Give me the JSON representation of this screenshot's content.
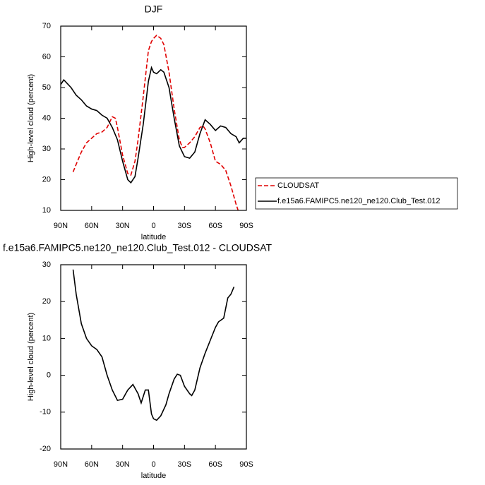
{
  "chart_data": [
    {
      "type": "line",
      "title": "DJF",
      "xlabel": "latitude",
      "ylabel": "High-level cloud (percent)",
      "xlim": [
        90,
        -90
      ],
      "ylim": [
        10,
        70
      ],
      "xticks": [
        {
          "value": 90,
          "label": "90N"
        },
        {
          "value": 60,
          "label": "60N"
        },
        {
          "value": 30,
          "label": "30N"
        },
        0,
        {
          "value": -30,
          "label": "30S"
        },
        {
          "value": -60,
          "label": "60S"
        },
        {
          "value": -90,
          "label": "90S"
        }
      ],
      "yticks": [
        10,
        20,
        30,
        40,
        50,
        60,
        70
      ],
      "legend": "outside-right",
      "series": [
        {
          "name": "CLOUDSAT",
          "color": "#e00000",
          "dashed": true,
          "x": [
            78,
            75,
            70,
            65,
            60,
            55,
            50,
            45,
            40,
            37,
            35,
            30,
            25,
            22,
            18,
            15,
            10,
            5,
            2,
            0,
            -3,
            -7,
            -10,
            -15,
            -20,
            -25,
            -28,
            -30,
            -35,
            -40,
            -45,
            -48,
            -50,
            -55,
            -60,
            -65,
            -70,
            -75,
            -80,
            -82
          ],
          "values": [
            22.5,
            25,
            29,
            32,
            33.5,
            35,
            35.5,
            37,
            40.5,
            40,
            37,
            28,
            22,
            21.5,
            26,
            33,
            47,
            62,
            65,
            66,
            67,
            66,
            64,
            55,
            43,
            33,
            30.5,
            30.5,
            32,
            34,
            37,
            37.5,
            36.5,
            32,
            26,
            25,
            23,
            18,
            12,
            10
          ]
        },
        {
          "name": "f.e15a6.FAMIPC5.ne120_ne120.Club_Test.012",
          "color": "#000000",
          "dashed": false,
          "x": [
            90,
            87,
            80,
            75,
            70,
            65,
            60,
            55,
            50,
            45,
            40,
            35,
            30,
            25,
            22,
            18,
            15,
            10,
            5,
            2,
            0,
            -3,
            -7,
            -10,
            -15,
            -20,
            -25,
            -30,
            -35,
            -40,
            -45,
            -50,
            -55,
            -60,
            -65,
            -70,
            -75,
            -80,
            -83,
            -87,
            -90
          ],
          "values": [
            51,
            52.5,
            50,
            47.5,
            46,
            44,
            43,
            42.5,
            41,
            40,
            37,
            33,
            26,
            20,
            19,
            21,
            27,
            38,
            52,
            56.5,
            55,
            54.5,
            55.8,
            55,
            50,
            40,
            31,
            27.5,
            27,
            29,
            35,
            39.5,
            38,
            36,
            37.5,
            37,
            35,
            34,
            32,
            33.5,
            33.5
          ]
        }
      ]
    },
    {
      "type": "line",
      "title": "f.e15a6.FAMIPC5.ne120_ne120.Club_Test.012 - CLOUDSAT",
      "xlabel": "latitude",
      "ylabel": "High-level cloud (percent)",
      "xlim": [
        90,
        -90
      ],
      "ylim": [
        -20,
        30
      ],
      "xticks": [
        {
          "value": 90,
          "label": "90N"
        },
        {
          "value": 60,
          "label": "60N"
        },
        {
          "value": 30,
          "label": "30N"
        },
        0,
        {
          "value": -30,
          "label": "30S"
        },
        {
          "value": -60,
          "label": "60S"
        },
        {
          "value": -90,
          "label": "90S"
        }
      ],
      "yticks": [
        -20,
        -10,
        0,
        10,
        20,
        30
      ],
      "color": "#000000",
      "x": [
        78,
        75,
        70,
        65,
        60,
        55,
        50,
        45,
        40,
        35,
        30,
        25,
        20,
        15,
        12,
        8,
        5,
        2,
        0,
        -3,
        -7,
        -12,
        -15,
        -20,
        -23,
        -26,
        -30,
        -35,
        -37,
        -40,
        -45,
        -50,
        -55,
        -60,
        -63,
        -68,
        -72,
        -75,
        -78
      ],
      "values": [
        28.7,
        22,
        14,
        10,
        8,
        7,
        5,
        0,
        -4,
        -6.8,
        -6.5,
        -4,
        -2.5,
        -5,
        -7.5,
        -4,
        -4,
        -10.5,
        -11.8,
        -12.2,
        -11,
        -8,
        -5,
        -1,
        0.3,
        0,
        -3,
        -5,
        -5.5,
        -4,
        2,
        6,
        9.5,
        13,
        14.5,
        15.5,
        21,
        22,
        24
      ]
    }
  ]
}
